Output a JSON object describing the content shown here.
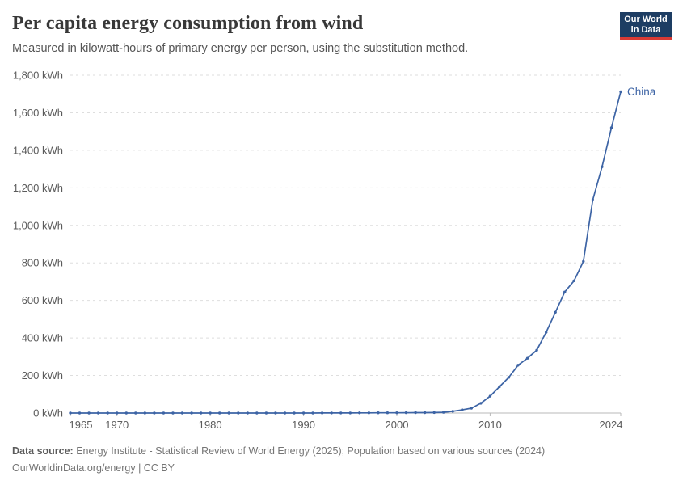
{
  "header": {
    "title": "Per capita energy consumption from wind",
    "subtitle": "Measured in kilowatt-hours of primary energy per person, using the substitution method.",
    "logo": {
      "line1": "Our World",
      "line2": "in Data",
      "bg_color": "#1d3d63",
      "accent_color": "#d93a34"
    }
  },
  "chart_data": {
    "type": "line",
    "title": "Per capita energy consumption from wind",
    "subtitle": "Measured in kilowatt-hours of primary energy per person, using the substitution method.",
    "unit": "kWh",
    "xlim": [
      1965,
      2024
    ],
    "ylim": [
      0,
      1800
    ],
    "grid": "dashed horizontal gridlines",
    "legend_position": "end-of-line label",
    "x_ticks": {
      "values": [
        1965,
        1970,
        1980,
        1990,
        2000,
        2010,
        2024
      ],
      "labels": [
        "1965",
        "1970",
        "1980",
        "1990",
        "2000",
        "2010",
        "2024"
      ]
    },
    "y_ticks": {
      "values": [
        0,
        200,
        400,
        600,
        800,
        1000,
        1200,
        1400,
        1600,
        1800
      ],
      "labels": [
        "0 kWh",
        "200 kWh",
        "400 kWh",
        "600 kWh",
        "800 kWh",
        "1,000 kWh",
        "1,200 kWh",
        "1,400 kWh",
        "1,600 kWh",
        "1,800 kWh"
      ]
    },
    "series": [
      {
        "name": "China",
        "color": "#3d64a5",
        "x": [
          1965,
          1966,
          1967,
          1968,
          1969,
          1970,
          1971,
          1972,
          1973,
          1974,
          1975,
          1976,
          1977,
          1978,
          1979,
          1980,
          1981,
          1982,
          1983,
          1984,
          1985,
          1986,
          1987,
          1988,
          1989,
          1990,
          1991,
          1992,
          1993,
          1994,
          1995,
          1996,
          1997,
          1998,
          1999,
          2000,
          2001,
          2002,
          2003,
          2004,
          2005,
          2006,
          2007,
          2008,
          2009,
          2010,
          2011,
          2012,
          2013,
          2014,
          2015,
          2016,
          2017,
          2018,
          2019,
          2020,
          2021,
          2022,
          2023,
          2024
        ],
        "values": [
          0,
          0,
          0,
          0,
          0,
          0,
          0,
          0,
          0,
          0,
          0,
          0,
          0,
          0,
          0,
          0,
          0,
          0,
          0,
          0,
          0,
          0.02,
          0.03,
          0.05,
          0.09,
          0.12,
          0.16,
          0.25,
          0.35,
          0.45,
          0.6,
          0.8,
          1.0,
          1.1,
          1.2,
          1.5,
          1.7,
          2.0,
          2.3,
          2.7,
          4,
          9,
          17,
          26,
          52,
          90,
          140,
          190,
          255,
          292,
          335,
          430,
          537,
          645,
          705,
          808,
          1135,
          1312,
          1520,
          1712
        ]
      }
    ]
  },
  "footer": {
    "source_label": "Data source:",
    "source_text": "Energy Institute - Statistical Review of World Energy (2025); Population based on various sources (2024)",
    "note_text": "OurWorldinData.org/energy | CC BY"
  }
}
